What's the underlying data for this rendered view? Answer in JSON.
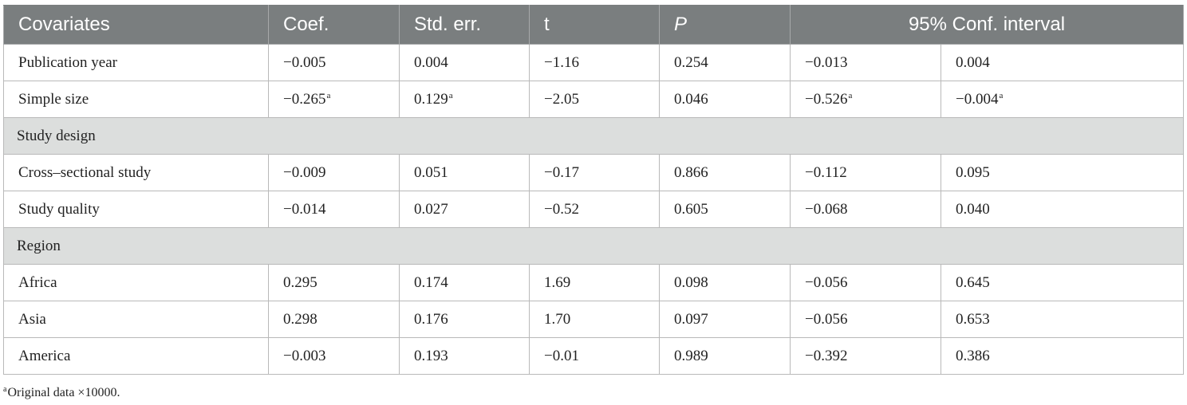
{
  "table": {
    "headers": {
      "covariates": "Covariates",
      "coef": "Coef.",
      "std_err": "Std. err.",
      "t": "t",
      "p": "P",
      "conf_interval": "95% Conf. interval"
    },
    "rows": [
      {
        "label": "Publication year",
        "coef": "−0.005",
        "coef_sup": "",
        "se": "0.004",
        "se_sup": "",
        "t": "−1.16",
        "p": "0.254",
        "ci_low": "−0.013",
        "ci_low_sup": "",
        "ci_high": "0.004",
        "ci_high_sup": ""
      },
      {
        "label": "Simple size",
        "coef": "−0.265",
        "coef_sup": "a",
        "se": "0.129",
        "se_sup": "a",
        "t": "−2.05",
        "p": "0.046",
        "ci_low": "−0.526",
        "ci_low_sup": "a",
        "ci_high": "−0.004",
        "ci_high_sup": "a"
      },
      {
        "section": "Study design"
      },
      {
        "label": "Cross–sectional study",
        "coef": "−0.009",
        "coef_sup": "",
        "se": "0.051",
        "se_sup": "",
        "t": "−0.17",
        "p": "0.866",
        "ci_low": "−0.112",
        "ci_low_sup": "",
        "ci_high": "0.095",
        "ci_high_sup": ""
      },
      {
        "label": "Study quality",
        "coef": "−0.014",
        "coef_sup": "",
        "se": "0.027",
        "se_sup": "",
        "t": "−0.52",
        "p": "0.605",
        "ci_low": "−0.068",
        "ci_low_sup": "",
        "ci_high": "0.040",
        "ci_high_sup": ""
      },
      {
        "section": "Region"
      },
      {
        "label": "Africa",
        "coef": "0.295",
        "coef_sup": "",
        "se": "0.174",
        "se_sup": "",
        "t": "1.69",
        "p": "0.098",
        "ci_low": "−0.056",
        "ci_low_sup": "",
        "ci_high": "0.645",
        "ci_high_sup": ""
      },
      {
        "label": "Asia",
        "coef": "0.298",
        "coef_sup": "",
        "se": "0.176",
        "se_sup": "",
        "t": "1.70",
        "p": "0.097",
        "ci_low": "−0.056",
        "ci_low_sup": "",
        "ci_high": "0.653",
        "ci_high_sup": ""
      },
      {
        "label": "America",
        "coef": "−0.003",
        "coef_sup": "",
        "se": "0.193",
        "se_sup": "",
        "t": "−0.01",
        "p": "0.989",
        "ci_low": "−0.392",
        "ci_low_sup": "",
        "ci_high": "0.386",
        "ci_high_sup": ""
      }
    ]
  },
  "footnote": {
    "marker": "a",
    "text": "Original data ×10000."
  },
  "colors": {
    "header_bg": "#7a7e7f",
    "header_text": "#ffffff",
    "section_bg": "#dcdedd",
    "border": "#b9b9b9",
    "body_text": "#222222"
  }
}
